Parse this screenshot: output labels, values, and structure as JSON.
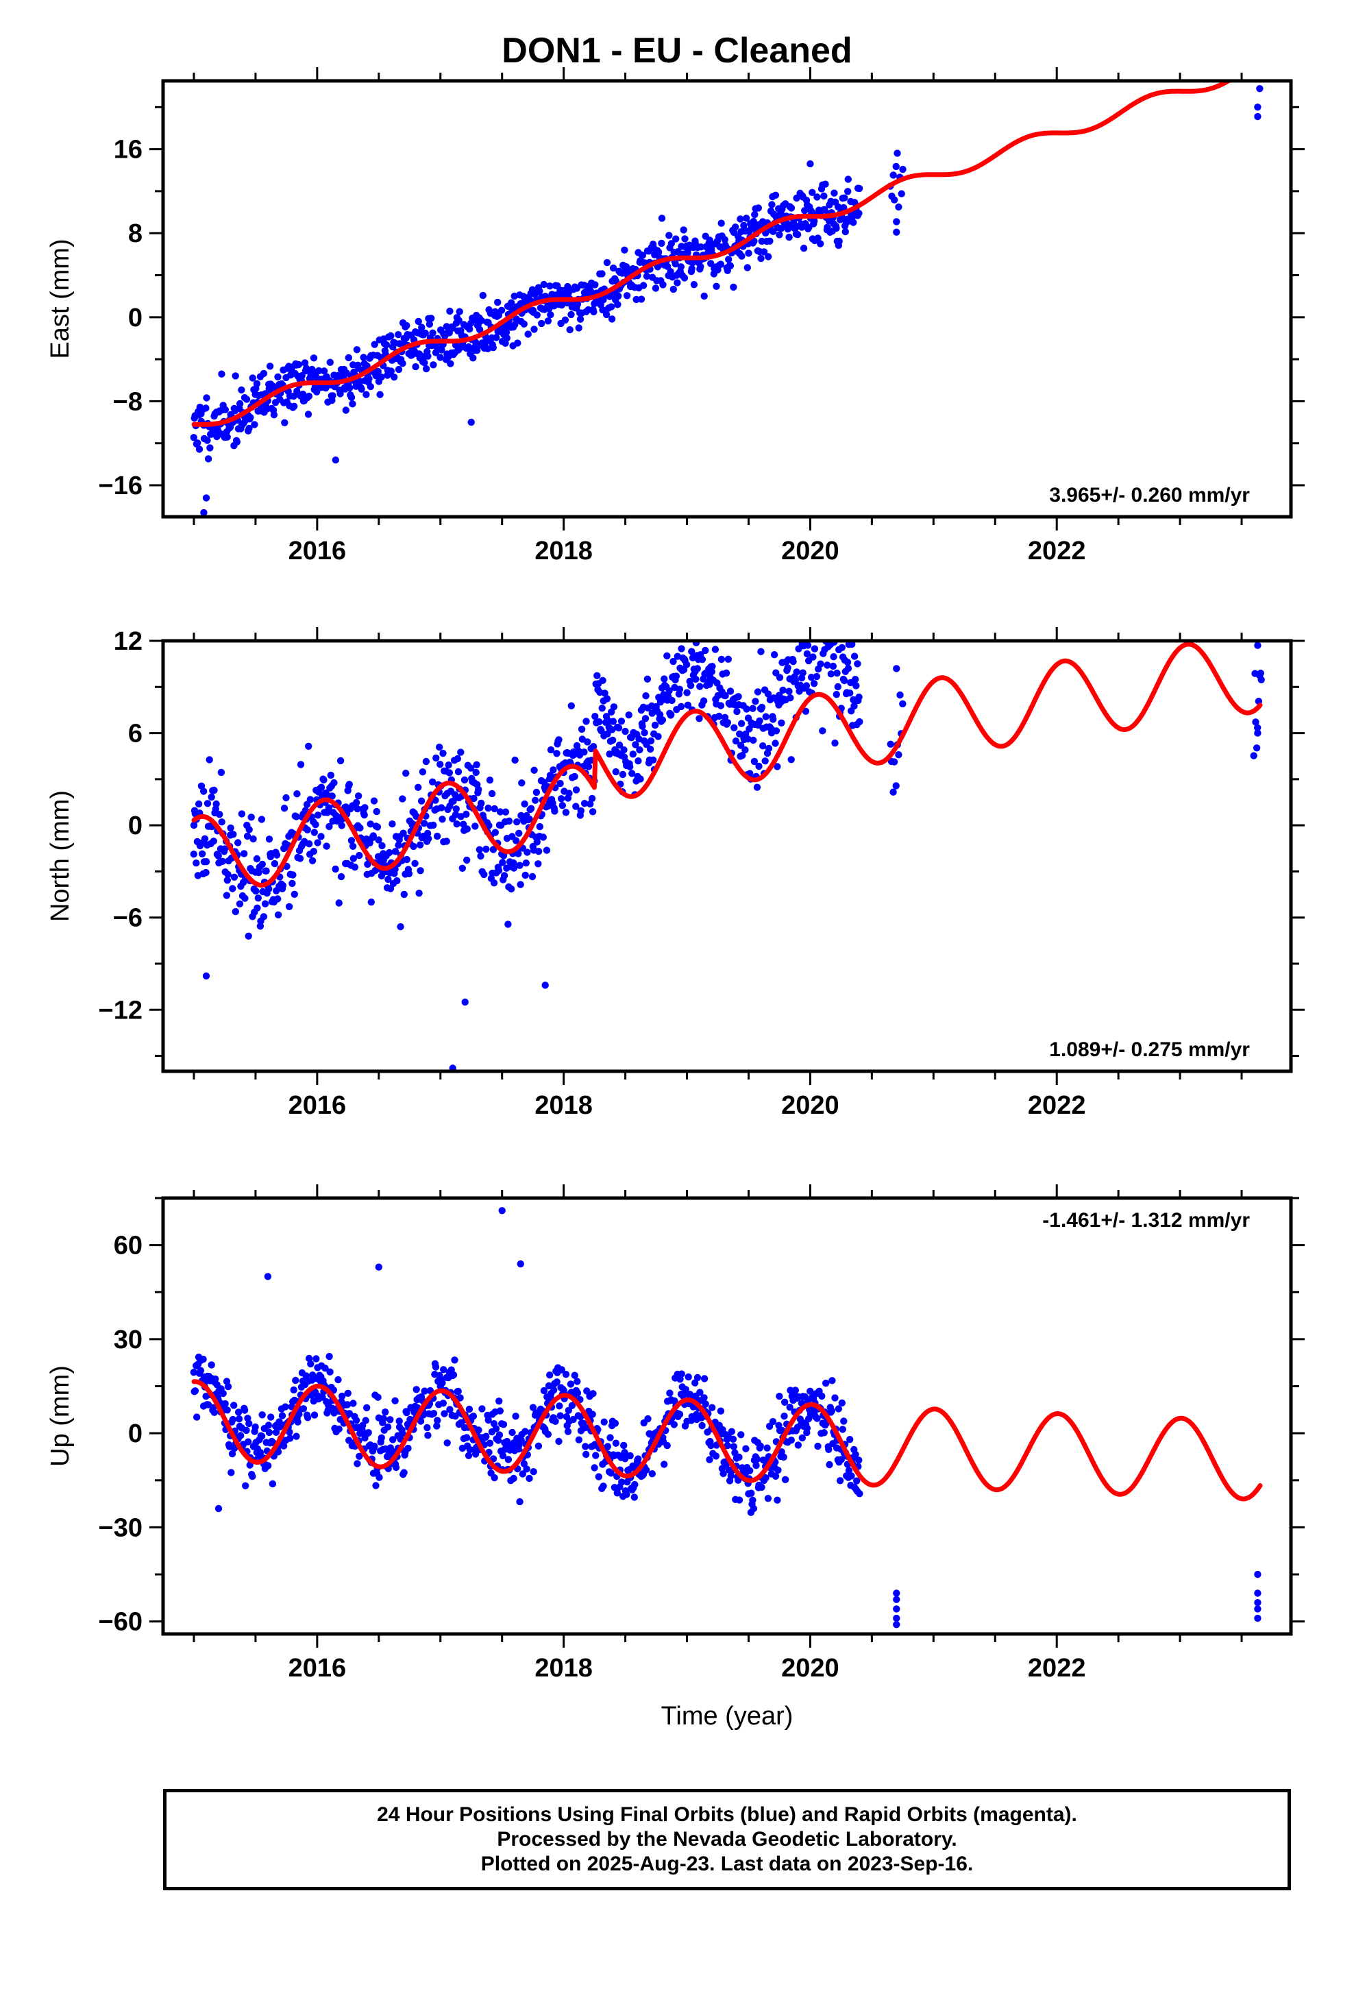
{
  "title": "DON1  - EU - Cleaned",
  "xlabel": "Time (year)",
  "footer": [
    "24 Hour Positions Using Final Orbits (blue) and Rapid Orbits (magenta).",
    "Processed by the Nevada Geodetic Laboratory.",
    "Plotted on 2025-Aug-23. Last data on 2023-Sep-16."
  ],
  "colors": {
    "data_points": "#0000ff",
    "model_curve": "#ff0000",
    "frame": "#000000"
  },
  "chart_data": [
    {
      "type": "scatter",
      "ylabel": "East (mm)",
      "xlim": [
        2014.75,
        2023.9
      ],
      "ylim": [
        -19,
        22.5
      ],
      "xticks": [
        2016,
        2018,
        2020,
        2022
      ],
      "yticks": [
        -16,
        -8,
        0,
        8,
        16
      ],
      "rate_label": "3.965+/- 0.260 mm/yr",
      "rate_position": "bottom-right",
      "model": {
        "name": "",
        "x0": 2015.0,
        "x1": 2023.65,
        "start": -10.3,
        "rate": 3.965,
        "seasonal": [
          {
            "amp": 0.65,
            "period": 1.0,
            "phase": 3.0
          }
        ]
      },
      "observations": {
        "gaps": [
          [
            2020.75,
            2023.5
          ]
        ],
        "scatter": 1.3,
        "seed": 11,
        "spans": [
          [
            2015.0,
            2020.4,
            3.4
          ],
          [
            2020.65,
            2020.75,
            2
          ],
          [
            2023.6,
            2023.66,
            3
          ]
        ]
      },
      "outliers": [
        {
          "x": 2015.08,
          "y": -18.6
        },
        {
          "x": 2015.1,
          "y": -17.2
        },
        {
          "x": 2016.15,
          "y": -13.6
        },
        {
          "x": 2017.25,
          "y": -10.0
        },
        {
          "x": 2020.0,
          "y": 14.6
        },
        {
          "x": 2020.7,
          "y": 8.1
        },
        {
          "x": 2020.7,
          "y": 9.1
        },
        {
          "x": 2023.63,
          "y": 19.1
        },
        {
          "x": 2023.63,
          "y": 20.0
        }
      ]
    },
    {
      "type": "scatter",
      "ylabel": "North (mm)",
      "xlim": [
        2014.75,
        2023.9
      ],
      "ylim": [
        -16,
        12
      ],
      "xticks": [
        2016,
        2018,
        2020,
        2022
      ],
      "yticks": [
        -12,
        -6,
        0,
        6,
        12
      ],
      "rate_label": "1.089+/- 0.275 mm/yr",
      "rate_position": "bottom-right",
      "model": {
        "name": "",
        "x0": 2015.0,
        "x1": 2023.65,
        "start": -2.0,
        "rate": 1.089,
        "steps": [
          {
            "x": 2018.25,
            "size": 2.5
          }
        ],
        "seasonal": [
          {
            "amp": 2.5,
            "period": 1.0,
            "phase": 1.2
          }
        ]
      },
      "observations": {
        "gaps": [
          [
            2020.75,
            2023.5
          ]
        ],
        "scatter": 1.7,
        "seed": 23,
        "spans": [
          [
            2015.0,
            2020.4,
            3.4
          ],
          [
            2020.65,
            2020.75,
            2
          ],
          [
            2023.6,
            2023.66,
            3
          ]
        ],
        "offset_window": [
          2018.25,
          2020.4,
          3.0
        ]
      },
      "outliers": [
        {
          "x": 2015.0,
          "y": 0.0
        },
        {
          "x": 2015.1,
          "y": -9.8
        },
        {
          "x": 2017.1,
          "y": -15.8
        },
        {
          "x": 2017.2,
          "y": -11.5
        },
        {
          "x": 2017.85,
          "y": -10.4
        },
        {
          "x": 2019.6,
          "y": 11.3
        },
        {
          "x": 2020.7,
          "y": 10.2
        },
        {
          "x": 2023.63,
          "y": 11.7
        },
        {
          "x": 2023.63,
          "y": 6.0
        }
      ]
    },
    {
      "type": "scatter",
      "ylabel": "Up (mm)",
      "xlim": [
        2014.75,
        2023.9
      ],
      "ylim": [
        -64,
        75
      ],
      "xticks": [
        2016,
        2018,
        2020,
        2022
      ],
      "yticks": [
        -60,
        -30,
        0,
        30,
        60
      ],
      "rate_label": "-1.461+/- 1.312 mm/yr",
      "rate_position": "top-right",
      "model": {
        "name": "",
        "x0": 2015.0,
        "x1": 2023.65,
        "start": 4.0,
        "rate": -1.461,
        "seasonal": [
          {
            "amp": 12.5,
            "period": 1.0,
            "phase": 1.5
          }
        ]
      },
      "observations": {
        "gaps": [
          [
            2020.75,
            2023.5
          ]
        ],
        "scatter": 5.5,
        "seed": 37,
        "spans": [
          [
            2015.0,
            2020.4,
            3.4
          ]
        ],
        "summer_boost": [
          2015.0,
          2018.0,
          10.0
        ]
      },
      "outliers": [
        {
          "x": 2017.5,
          "y": 71.0
        },
        {
          "x": 2017.65,
          "y": 54.0
        },
        {
          "x": 2016.5,
          "y": 53.0
        },
        {
          "x": 2015.6,
          "y": 50.0
        },
        {
          "x": 2015.2,
          "y": -24.0
        },
        {
          "x": 2020.7,
          "y": -51.0
        },
        {
          "x": 2020.7,
          "y": -53.0
        },
        {
          "x": 2020.7,
          "y": -56.0
        },
        {
          "x": 2020.7,
          "y": -59.0
        },
        {
          "x": 2020.7,
          "y": -61.0
        },
        {
          "x": 2023.63,
          "y": -45.0
        },
        {
          "x": 2023.63,
          "y": -51.0
        },
        {
          "x": 2023.63,
          "y": -54.0
        },
        {
          "x": 2023.63,
          "y": -56.0
        },
        {
          "x": 2023.63,
          "y": -59.0
        }
      ]
    }
  ]
}
